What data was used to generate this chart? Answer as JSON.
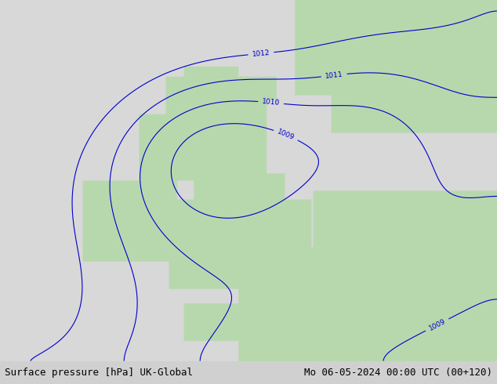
{
  "title_left": "Surface pressure [hPa] UK-Global",
  "title_right": "Mo 06-05-2024 00:00 UTC (00+120)",
  "background_color": "#d8d8d8",
  "land_color": "#b8d8b0",
  "sea_color": "#e8e8e8",
  "contour_color": "#0000cc",
  "contour_label_color": "#0000cc",
  "font_size_title": 9,
  "font_size_labels": 7
}
